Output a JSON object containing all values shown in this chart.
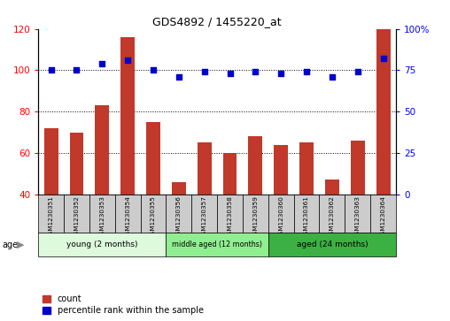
{
  "title": "GDS4892 / 1455220_at",
  "samples": [
    "GSM1230351",
    "GSM1230352",
    "GSM1230353",
    "GSM1230354",
    "GSM1230355",
    "GSM1230356",
    "GSM1230357",
    "GSM1230358",
    "GSM1230359",
    "GSM1230360",
    "GSM1230361",
    "GSM1230362",
    "GSM1230363",
    "GSM1230364"
  ],
  "counts": [
    72,
    70,
    83,
    116,
    75,
    46,
    65,
    60,
    68,
    64,
    65,
    47,
    66,
    120
  ],
  "percentiles": [
    75,
    75,
    79,
    81,
    75,
    71,
    74,
    73,
    74,
    73,
    74,
    71,
    74,
    82
  ],
  "ylim_left": [
    40,
    120
  ],
  "ylim_right": [
    0,
    100
  ],
  "yticks_left": [
    40,
    60,
    80,
    100,
    120
  ],
  "yticks_right": [
    0,
    25,
    50,
    75,
    100
  ],
  "groups": [
    {
      "label": "young (2 months)",
      "start": 0,
      "end": 5,
      "color": "#DDFADD"
    },
    {
      "label": "middle aged (12 months)",
      "start": 5,
      "end": 9,
      "color": "#90EE90"
    },
    {
      "label": "aged (24 months)",
      "start": 9,
      "end": 14,
      "color": "#3CB043"
    }
  ],
  "bar_color": "#C0392B",
  "scatter_color": "#0000CC",
  "grid_color": "#000000",
  "bg_color": "#FFFFFF",
  "label_bg_color": "#CCCCCC",
  "age_label": "age",
  "age_arrow_color": "#888888",
  "legend_count": "count",
  "legend_percentile": "percentile rank within the sample"
}
